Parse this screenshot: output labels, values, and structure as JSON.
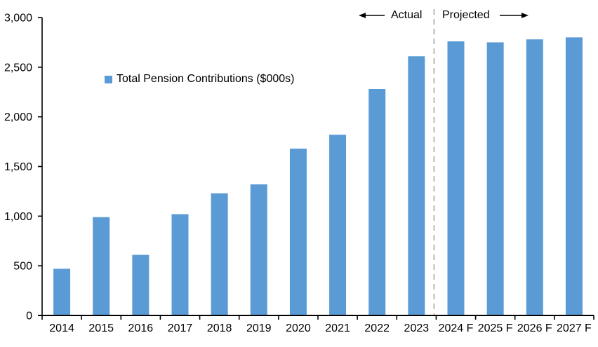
{
  "chart_data": {
    "type": "bar",
    "title": "",
    "xlabel": "",
    "ylabel": "",
    "categories": [
      "2014",
      "2015",
      "2016",
      "2017",
      "2018",
      "2019",
      "2020",
      "2021",
      "2022",
      "2023",
      "2024 F",
      "2025 F",
      "2026 F",
      "2027 F"
    ],
    "values": [
      470,
      990,
      610,
      1020,
      1230,
      1320,
      1680,
      1820,
      2280,
      2610,
      2760,
      2750,
      2780,
      2800
    ],
    "ylim": [
      0,
      3000
    ],
    "ytick_interval": 500,
    "ytick_labels": [
      "0",
      "500",
      "1,000",
      "1,500",
      "2,000",
      "2,500",
      "3,000"
    ],
    "grid": false,
    "legend_position": "inside-upper-left",
    "legend": [
      {
        "label": "Total Pension Contributions ($000s)",
        "color": "#5B9BD5"
      }
    ],
    "annotations": {
      "actual_label": "Actual",
      "projected_label": "Projected"
    },
    "divider_between": [
      "2023",
      "2024 F"
    ],
    "bar_color": "#5B9BD5",
    "divider_color": "#A6A6A6",
    "axis_color": "#000000"
  }
}
